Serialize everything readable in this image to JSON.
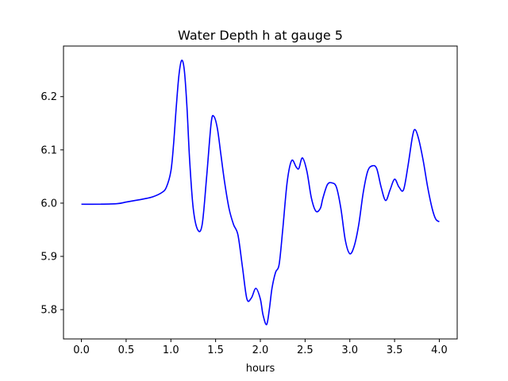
{
  "chart_data": {
    "type": "line",
    "title": "Water Depth h at gauge 5",
    "xlabel": "hours",
    "ylabel": "",
    "xlim": [
      -0.2,
      4.2
    ],
    "ylim": [
      5.745,
      6.295
    ],
    "xticks": [
      0.0,
      0.5,
      1.0,
      1.5,
      2.0,
      2.5,
      3.0,
      3.5,
      4.0
    ],
    "xtick_labels": [
      "0.0",
      "0.5",
      "1.0",
      "1.5",
      "2.0",
      "2.5",
      "3.0",
      "3.5",
      "4.0"
    ],
    "yticks": [
      5.8,
      5.9,
      6.0,
      6.1,
      6.2
    ],
    "ytick_labels": [
      "5.8",
      "5.9",
      "6.0",
      "6.1",
      "6.2"
    ],
    "grid": false,
    "series": [
      {
        "color": "#0000ff",
        "x": [
          0.0,
          0.2,
          0.4,
          0.5,
          0.6,
          0.7,
          0.8,
          0.9,
          0.95,
          1.0,
          1.03,
          1.06,
          1.09,
          1.12,
          1.15,
          1.18,
          1.21,
          1.25,
          1.3,
          1.35,
          1.4,
          1.45,
          1.48,
          1.52,
          1.56,
          1.6,
          1.65,
          1.7,
          1.75,
          1.8,
          1.85,
          1.9,
          1.95,
          2.0,
          2.03,
          2.07,
          2.1,
          2.13,
          2.17,
          2.21,
          2.25,
          2.3,
          2.35,
          2.4,
          2.43,
          2.47,
          2.52,
          2.57,
          2.62,
          2.67,
          2.7,
          2.75,
          2.8,
          2.85,
          2.9,
          2.95,
          3.0,
          3.05,
          3.1,
          3.15,
          3.2,
          3.25,
          3.3,
          3.35,
          3.4,
          3.45,
          3.5,
          3.55,
          3.6,
          3.65,
          3.7,
          3.73,
          3.77,
          3.82,
          3.87,
          3.92,
          3.96,
          4.0
        ],
        "y": [
          5.998,
          5.998,
          5.999,
          6.002,
          6.005,
          6.008,
          6.012,
          6.02,
          6.03,
          6.06,
          6.11,
          6.18,
          6.24,
          6.268,
          6.25,
          6.18,
          6.08,
          5.99,
          5.95,
          5.96,
          6.05,
          6.15,
          6.163,
          6.14,
          6.09,
          6.04,
          5.99,
          5.96,
          5.94,
          5.88,
          5.82,
          5.822,
          5.84,
          5.82,
          5.79,
          5.772,
          5.8,
          5.84,
          5.87,
          5.885,
          5.95,
          6.04,
          6.08,
          6.068,
          6.065,
          6.085,
          6.06,
          6.01,
          5.985,
          5.99,
          6.01,
          6.035,
          6.038,
          6.03,
          5.99,
          5.93,
          5.905,
          5.92,
          5.96,
          6.02,
          6.06,
          6.07,
          6.065,
          6.03,
          6.005,
          6.025,
          6.045,
          6.03,
          6.025,
          6.07,
          6.125,
          6.138,
          6.12,
          6.08,
          6.03,
          5.99,
          5.97,
          5.965
        ]
      }
    ]
  }
}
